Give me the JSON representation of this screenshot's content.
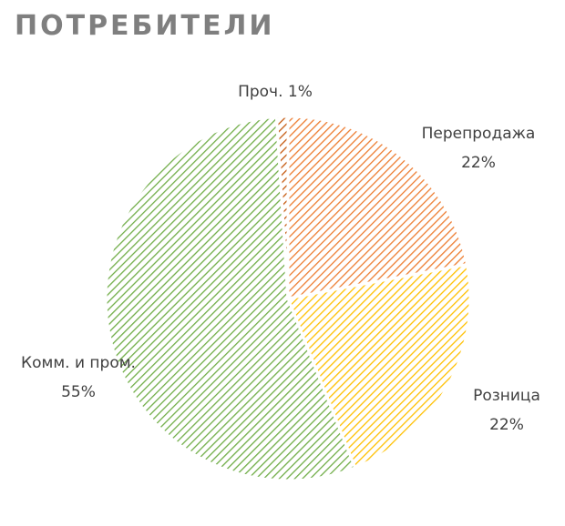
{
  "chart_data": {
    "type": "pie",
    "title": "ПОТРЕБИТЕЛИ",
    "categories": [
      "Перепродажа",
      "Розница",
      "Комм. и пром.",
      "Проч."
    ],
    "values": [
      22,
      22,
      55,
      1
    ],
    "value_labels": [
      "22%",
      "22%",
      "55%",
      "1%"
    ],
    "colors": [
      "#ed7d31",
      "#ffc000",
      "#70ad47",
      "#c55a11"
    ],
    "fill_pattern": "hatch"
  }
}
